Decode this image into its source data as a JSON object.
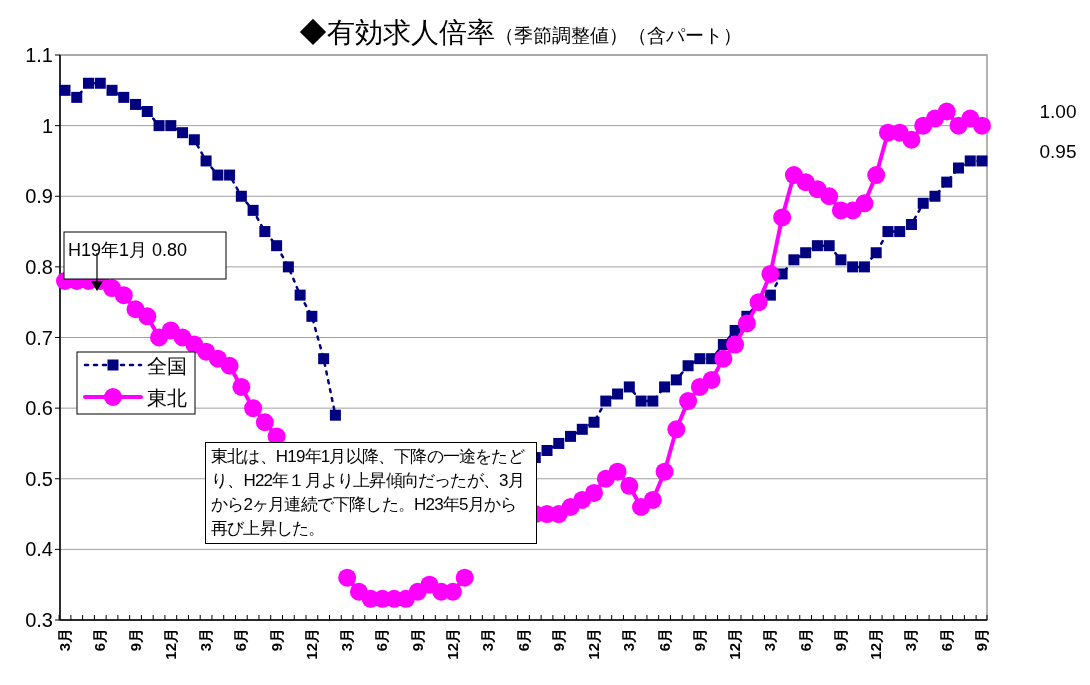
{
  "chart_data": {
    "type": "line",
    "title": "◆有効求人倍率",
    "subtitle": "（季節調整値）（含パート）",
    "categories": [
      "3月",
      null,
      null,
      "6月",
      null,
      null,
      "9月",
      null,
      null,
      "12月",
      null,
      null,
      "3月",
      null,
      null,
      "6月",
      null,
      null,
      "9月",
      null,
      null,
      "12月",
      null,
      null,
      "3月",
      null,
      null,
      "6月",
      null,
      null,
      "9月",
      null,
      null,
      "12月",
      null,
      null,
      "3月",
      null,
      null,
      "6月",
      null,
      null,
      "9月",
      null,
      null,
      "12月",
      null,
      null,
      "3月",
      null,
      null,
      "6月",
      null,
      null,
      "9月",
      null,
      null,
      "12月",
      null,
      null,
      "3月",
      null,
      null,
      "6月",
      null,
      null,
      "9月",
      null,
      null,
      "12月",
      null,
      null,
      "3月",
      null,
      null,
      "6月",
      null,
      null,
      "9月"
    ],
    "series": [
      {
        "name": "全国",
        "color": "#000080",
        "marker": "square",
        "line_style": "dotted",
        "values": [
          1.05,
          1.04,
          1.06,
          1.06,
          1.05,
          1.04,
          1.03,
          1.02,
          1.0,
          1.0,
          0.99,
          0.98,
          0.95,
          0.93,
          0.93,
          0.9,
          0.88,
          0.85,
          0.83,
          0.8,
          0.76,
          0.73,
          0.67,
          0.59,
          null,
          null,
          null,
          null,
          null,
          null,
          null,
          null,
          null,
          null,
          null,
          null,
          null,
          null,
          null,
          null,
          0.53,
          0.54,
          0.55,
          0.56,
          0.57,
          0.58,
          0.61,
          0.62,
          0.63,
          0.61,
          0.61,
          0.63,
          0.64,
          0.66,
          0.67,
          0.67,
          0.69,
          0.71,
          0.73,
          0.75,
          0.76,
          0.79,
          0.81,
          0.82,
          0.83,
          0.83,
          0.81,
          0.8,
          0.8,
          0.82,
          0.85,
          0.85,
          0.86,
          0.89,
          0.9,
          0.92,
          0.94,
          0.95,
          0.95
        ]
      },
      {
        "name": "東北",
        "color": "#ff00ff",
        "marker": "circle",
        "line_style": "solid",
        "values": [
          0.78,
          0.78,
          0.78,
          0.78,
          0.77,
          0.76,
          0.74,
          0.73,
          0.7,
          0.71,
          0.7,
          0.69,
          0.68,
          0.67,
          0.66,
          0.63,
          0.6,
          0.58,
          0.56,
          null,
          null,
          null,
          null,
          null,
          0.36,
          0.34,
          0.33,
          0.33,
          0.33,
          0.33,
          0.34,
          0.35,
          0.34,
          0.34,
          0.36,
          null,
          null,
          null,
          null,
          null,
          0.45,
          0.45,
          0.45,
          0.46,
          0.47,
          0.48,
          0.5,
          0.51,
          0.49,
          0.46,
          0.47,
          0.51,
          0.57,
          0.61,
          0.63,
          0.64,
          0.67,
          0.69,
          0.72,
          0.75,
          0.79,
          0.87,
          0.93,
          0.92,
          0.91,
          0.9,
          0.88,
          0.88,
          0.89,
          0.93,
          0.99,
          0.99,
          0.98,
          1.0,
          1.01,
          1.02,
          1.0,
          1.01,
          1.0
        ]
      }
    ],
    "ylim": [
      0.3,
      1.1
    ],
    "yticks": [
      0.3,
      0.4,
      0.5,
      0.6,
      0.7,
      0.8,
      0.9,
      1,
      1.1
    ],
    "grid": "y",
    "legend": "left",
    "annotations": [
      "H19年1月 0.80",
      "東北は、H19年1月以降、下降の一途をたどり、H22年１月より上昇傾向だったが、3月から2ヶ月連続で下降した。H23年5月から再び上昇した。",
      "1.00",
      "0.95"
    ]
  }
}
